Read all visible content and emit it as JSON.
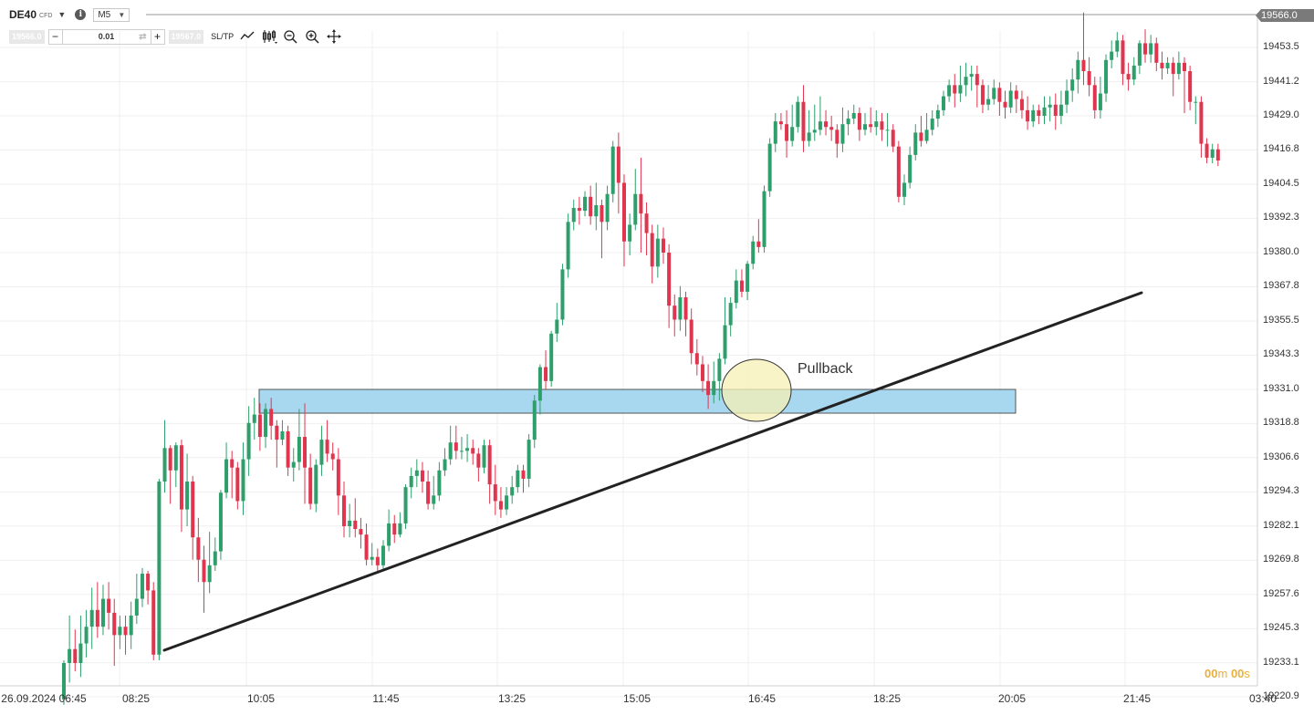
{
  "header": {
    "symbol": "DE40",
    "badge": "CFD",
    "info_icon": "info-icon",
    "timeframe": "M5",
    "current_price": "19566.0"
  },
  "trade_bar": {
    "sell_price": "19566.0",
    "quantity": "0.01",
    "buy_price": "19567.0",
    "sltp_label": "SL/TP",
    "tools": [
      "line-chart-icon",
      "candlestick-icon",
      "zoom-out-icon",
      "zoom-in-icon",
      "crosshair-icon"
    ]
  },
  "annotation": {
    "pullback_label": "Pullback"
  },
  "countdown": {
    "m": "00",
    "m_unit": "m",
    "s": "00",
    "s_unit": "s"
  },
  "colors": {
    "up": "#2e9e6b",
    "down": "#e0354f",
    "zone_fill": "#a8d8f0",
    "zone_stroke": "#555555",
    "circle_fill": "#f6f0b4",
    "trendline": "#222222"
  },
  "chart_data": {
    "type": "candlestick",
    "symbol": "DE40",
    "timeframe": "M5",
    "ylim": [
      19215,
      19472
    ],
    "y_ticks": [
      19453.5,
      19441.2,
      19429.0,
      19416.8,
      19404.5,
      19392.3,
      19380.0,
      19367.8,
      19355.5,
      19343.3,
      19331.0,
      19318.8,
      19306.6,
      19294.3,
      19282.1,
      19269.8,
      19257.6,
      19245.3,
      19233.1,
      19220.9
    ],
    "y_tick_labels": [
      "19453.5",
      "19441.2",
      "19429.0",
      "19416.8",
      "19404.5",
      "19392.3",
      "19380.0",
      "19367.8",
      "19355.5",
      "19343.3",
      "19331.0",
      "19318.8",
      "19306.6",
      "19294.3",
      "19282.1",
      "19269.8",
      "19257.6",
      "19245.3",
      "19233.1",
      "19220.9"
    ],
    "x_tick_labels": [
      "26.09.2024 06:45",
      "08:25",
      "10:05",
      "11:45",
      "13:25",
      "15:05",
      "16:45",
      "18:25",
      "20:05",
      "21:45",
      "03:40"
    ],
    "resistance_zone": {
      "from": 19322.5,
      "to": 19331.0,
      "label": "Pullback"
    },
    "candles": [
      [
        19220,
        19233,
        19218,
        19234
      ],
      [
        19233,
        19238,
        19226,
        19250
      ],
      [
        19238,
        19233,
        19230,
        19245
      ],
      [
        19233,
        19240,
        19228,
        19250
      ],
      [
        19240,
        19246,
        19235,
        19252
      ],
      [
        19246,
        19252,
        19238,
        19260
      ],
      [
        19252,
        19246,
        19242,
        19262
      ],
      [
        19246,
        19256,
        19243,
        19261
      ],
      [
        19256,
        19251,
        19245,
        19262
      ],
      [
        19251,
        19243,
        19232,
        19256
      ],
      [
        19243,
        19246,
        19238,
        19250
      ],
      [
        19246,
        19243,
        19236,
        19250
      ],
      [
        19243,
        19250,
        19238,
        19255
      ],
      [
        19250,
        19256,
        19247,
        19265
      ],
      [
        19256,
        19265,
        19253,
        19267
      ],
      [
        19265,
        19259,
        19254,
        19266
      ],
      [
        19259,
        19236,
        19234,
        19262
      ],
      [
        19236,
        19298,
        19234,
        19299
      ],
      [
        19298,
        19310,
        19294,
        19320
      ],
      [
        19310,
        19302,
        19290,
        19311
      ],
      [
        19302,
        19311,
        19296,
        19312
      ],
      [
        19311,
        19288,
        19280,
        19313
      ],
      [
        19288,
        19298,
        19282,
        19308
      ],
      [
        19298,
        19278,
        19270,
        19300
      ],
      [
        19278,
        19270,
        19262,
        19285
      ],
      [
        19270,
        19262,
        19251,
        19275
      ],
      [
        19262,
        19268,
        19258,
        19280
      ],
      [
        19268,
        19273,
        19266,
        19278
      ],
      [
        19273,
        19294,
        19270,
        19295
      ],
      [
        19294,
        19306,
        19292,
        19312
      ],
      [
        19306,
        19303,
        19292,
        19309
      ],
      [
        19303,
        19291,
        19288,
        19305
      ],
      [
        19291,
        19306,
        19286,
        19312
      ],
      [
        19306,
        19319,
        19300,
        19325
      ],
      [
        19319,
        19322,
        19313,
        19328
      ],
      [
        19322,
        19314,
        19309,
        19326
      ],
      [
        19314,
        19324,
        19310,
        19326
      ],
      [
        19324,
        19318,
        19313,
        19328
      ],
      [
        19318,
        19313,
        19303,
        19320
      ],
      [
        19313,
        19316,
        19311,
        19320
      ],
      [
        19316,
        19303,
        19300,
        19318
      ],
      [
        19303,
        19305,
        19298,
        19310
      ],
      [
        19305,
        19314,
        19302,
        19324
      ],
      [
        19314,
        19303,
        19290,
        19326
      ],
      [
        19303,
        19290,
        19288,
        19308
      ],
      [
        19290,
        19304,
        19287,
        19306
      ],
      [
        19304,
        19313,
        19300,
        19318
      ],
      [
        19313,
        19308,
        19305,
        19320
      ],
      [
        19308,
        19306,
        19302,
        19312
      ],
      [
        19306,
        19293,
        19286,
        19310
      ],
      [
        19293,
        19282,
        19278,
        19298
      ],
      [
        19282,
        19284,
        19278,
        19290
      ],
      [
        19284,
        19281,
        19278,
        19292
      ],
      [
        19281,
        19279,
        19274,
        19285
      ],
      [
        19279,
        19270,
        19268,
        19283
      ],
      [
        19270,
        19271,
        19268,
        19276
      ],
      [
        19271,
        19268,
        19266,
        19274
      ],
      [
        19268,
        19275,
        19266,
        19277
      ],
      [
        19275,
        19283,
        19273,
        19288
      ],
      [
        19283,
        19279,
        19276,
        19286
      ],
      [
        19279,
        19283,
        19278,
        19287
      ],
      [
        19283,
        19296,
        19281,
        19297
      ],
      [
        19296,
        19300,
        19292,
        19303
      ],
      [
        19300,
        19302,
        19296,
        19306
      ],
      [
        19302,
        19298,
        19294,
        19305
      ],
      [
        19298,
        19290,
        19288,
        19302
      ],
      [
        19290,
        19293,
        19288,
        19300
      ],
      [
        19293,
        19302,
        19291,
        19305
      ],
      [
        19302,
        19306,
        19300,
        19310
      ],
      [
        19306,
        19312,
        19304,
        19318
      ],
      [
        19312,
        19309,
        19306,
        19318
      ],
      [
        19309,
        19309,
        19306,
        19314
      ],
      [
        19309,
        19310,
        19305,
        19315
      ],
      [
        19310,
        19308,
        19304,
        19313
      ],
      [
        19308,
        19303,
        19298,
        19310
      ],
      [
        19303,
        19311,
        19301,
        19313
      ],
      [
        19311,
        19297,
        19290,
        19313
      ],
      [
        19297,
        19291,
        19286,
        19304
      ],
      [
        19291,
        19288,
        19285,
        19296
      ],
      [
        19288,
        19293,
        19286,
        19296
      ],
      [
        19293,
        19296,
        19290,
        19300
      ],
      [
        19296,
        19302,
        19294,
        19304
      ],
      [
        19302,
        19299,
        19294,
        19304
      ],
      [
        19299,
        19313,
        19296,
        19315
      ],
      [
        19313,
        19327,
        19310,
        19329
      ],
      [
        19327,
        19339,
        19322,
        19340
      ],
      [
        19339,
        19334,
        19331,
        19345
      ],
      [
        19334,
        19351,
        19332,
        19352
      ],
      [
        19351,
        19356,
        19348,
        19362
      ],
      [
        19356,
        19374,
        19354,
        19376
      ],
      [
        19374,
        19391,
        19371,
        19394
      ],
      [
        19391,
        19396,
        19388,
        19399
      ],
      [
        19396,
        19395,
        19390,
        19400
      ],
      [
        19395,
        19400,
        19393,
        19402
      ],
      [
        19400,
        19393,
        19390,
        19404
      ],
      [
        19393,
        19397,
        19388,
        19405
      ],
      [
        19397,
        19391,
        19378,
        19399
      ],
      [
        19391,
        19401,
        19388,
        19404
      ],
      [
        19401,
        19418,
        19398,
        19420
      ],
      [
        19418,
        19405,
        19394,
        19423
      ],
      [
        19405,
        19384,
        19375,
        19408
      ],
      [
        19384,
        19390,
        19379,
        19394
      ],
      [
        19390,
        19401,
        19388,
        19410
      ],
      [
        19401,
        19394,
        19380,
        19414
      ],
      [
        19394,
        19387,
        19379,
        19398
      ],
      [
        19387,
        19375,
        19369,
        19390
      ],
      [
        19375,
        19385,
        19371,
        19390
      ],
      [
        19385,
        19380,
        19376,
        19389
      ],
      [
        19380,
        19361,
        19353,
        19383
      ],
      [
        19361,
        19356,
        19350,
        19365
      ],
      [
        19356,
        19364,
        19352,
        19368
      ],
      [
        19364,
        19356,
        19350,
        19366
      ],
      [
        19356,
        19344,
        19340,
        19360
      ],
      [
        19344,
        19340,
        19336,
        19349
      ],
      [
        19340,
        19334,
        19330,
        19343
      ],
      [
        19334,
        19329,
        19324,
        19340
      ],
      [
        19329,
        19334,
        19326,
        19341
      ],
      [
        19334,
        19342,
        19327,
        19344
      ],
      [
        19342,
        19354,
        19340,
        19364
      ],
      [
        19354,
        19362,
        19350,
        19364
      ],
      [
        19362,
        19370,
        19360,
        19374
      ],
      [
        19370,
        19366,
        19364,
        19374
      ],
      [
        19366,
        19376,
        19363,
        19377
      ],
      [
        19376,
        19384,
        19374,
        19386
      ],
      [
        19384,
        19382,
        19380,
        19392
      ],
      [
        19382,
        19402,
        19380,
        19404
      ],
      [
        19402,
        19419,
        19400,
        19421
      ],
      [
        19419,
        19427,
        19416,
        19430
      ],
      [
        19427,
        19426,
        19424,
        19430
      ],
      [
        19426,
        19420,
        19414,
        19431
      ],
      [
        19420,
        19425,
        19418,
        19433
      ],
      [
        19425,
        19434,
        19423,
        19436
      ],
      [
        19434,
        19420,
        19416,
        19440
      ],
      [
        19420,
        19423,
        19418,
        19431
      ],
      [
        19423,
        19424,
        19420,
        19433
      ],
      [
        19424,
        19427,
        19422,
        19436
      ],
      [
        19427,
        19425,
        19422,
        19431
      ],
      [
        19425,
        19424,
        19420,
        19429
      ],
      [
        19424,
        19419,
        19414,
        19426
      ],
      [
        19419,
        19426,
        19416,
        19432
      ],
      [
        19426,
        19428,
        19422,
        19431
      ],
      [
        19428,
        19430,
        19426,
        19433
      ],
      [
        19430,
        19424,
        19420,
        19432
      ],
      [
        19424,
        19426,
        19422,
        19430
      ],
      [
        19426,
        19425,
        19423,
        19432
      ],
      [
        19425,
        19427,
        19422,
        19431
      ],
      [
        19427,
        19424,
        19420,
        19430
      ],
      [
        19424,
        19424,
        19418,
        19430
      ],
      [
        19424,
        19418,
        19416,
        19426
      ],
      [
        19418,
        19400,
        19398,
        19420
      ],
      [
        19400,
        19405,
        19397,
        19408
      ],
      [
        19405,
        19415,
        19403,
        19418
      ],
      [
        19415,
        19423,
        19413,
        19426
      ],
      [
        19423,
        19420,
        19418,
        19429
      ],
      [
        19420,
        19424,
        19419,
        19430
      ],
      [
        19424,
        19428,
        19422,
        19431
      ],
      [
        19428,
        19431,
        19425,
        19433
      ],
      [
        19431,
        19436,
        19429,
        19438
      ],
      [
        19436,
        19440,
        19434,
        19442
      ],
      [
        19440,
        19437,
        19432,
        19444
      ],
      [
        19437,
        19440,
        19434,
        19447
      ],
      [
        19440,
        19443,
        19436,
        19448
      ],
      [
        19443,
        19444,
        19438,
        19447
      ],
      [
        19444,
        19440,
        19432,
        19447
      ],
      [
        19440,
        19433,
        19430,
        19442
      ],
      [
        19433,
        19435,
        19431,
        19440
      ],
      [
        19435,
        19439,
        19433,
        19442
      ],
      [
        19439,
        19434,
        19429,
        19441
      ],
      [
        19434,
        19432,
        19428,
        19438
      ],
      [
        19432,
        19438,
        19430,
        19441
      ],
      [
        19438,
        19435,
        19430,
        19440
      ],
      [
        19435,
        19431,
        19428,
        19438
      ],
      [
        19431,
        19427,
        19424,
        19436
      ],
      [
        19427,
        19431,
        19425,
        19433
      ],
      [
        19431,
        19429,
        19426,
        19433
      ],
      [
        19429,
        19432,
        19426,
        19436
      ],
      [
        19432,
        19433,
        19427,
        19436
      ],
      [
        19433,
        19429,
        19424,
        19437
      ],
      [
        19429,
        19433,
        19426,
        19438
      ],
      [
        19433,
        19438,
        19430,
        19442
      ],
      [
        19438,
        19442,
        19434,
        19446
      ],
      [
        19442,
        19449,
        19437,
        19452
      ],
      [
        19449,
        19445,
        19440,
        19466
      ],
      [
        19445,
        19440,
        19436,
        19450
      ],
      [
        19440,
        19431,
        19428,
        19443
      ],
      [
        19431,
        19437,
        19428,
        19443
      ],
      [
        19437,
        19449,
        19434,
        19451
      ],
      [
        19449,
        19452,
        19446,
        19456
      ],
      [
        19452,
        19456,
        19450,
        19459
      ],
      [
        19456,
        19444,
        19440,
        19458
      ],
      [
        19444,
        19442,
        19438,
        19448
      ],
      [
        19442,
        19447,
        19440,
        19450
      ],
      [
        19447,
        19455,
        19444,
        19456
      ],
      [
        19455,
        19451,
        19448,
        19460
      ],
      [
        19451,
        19455,
        19448,
        19458
      ],
      [
        19455,
        19448,
        19445,
        19457
      ],
      [
        19448,
        19446,
        19442,
        19452
      ],
      [
        19446,
        19448,
        19444,
        19450
      ],
      [
        19448,
        19444,
        19436,
        19450
      ],
      [
        19444,
        19448,
        19442,
        19452
      ],
      [
        19448,
        19445,
        19430,
        19450
      ],
      [
        19445,
        19434,
        19431,
        19447
      ],
      [
        19434,
        19434,
        19426,
        19436
      ],
      [
        19434,
        19419,
        19414,
        19436
      ],
      [
        19419,
        19414,
        19412,
        19421
      ],
      [
        19414,
        19417,
        19412,
        19419
      ],
      [
        19417,
        19413,
        19411,
        19419
      ]
    ],
    "candle_format": [
      "open",
      "close",
      "low",
      "high"
    ]
  }
}
